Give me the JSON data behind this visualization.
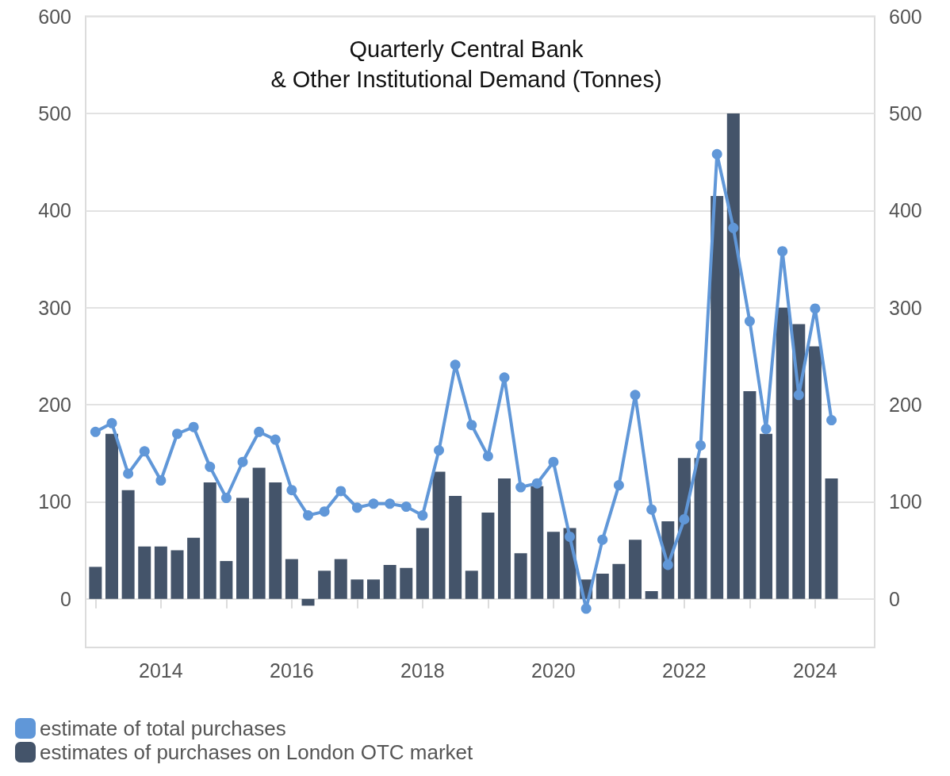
{
  "chart_data": {
    "type": "bar",
    "title": "Quarterly Central Bank\n& Other Institutional Demand (Tonnes)",
    "x": [
      2013,
      2013.25,
      2013.5,
      2013.75,
      2014,
      2014.25,
      2014.5,
      2014.75,
      2015,
      2015.25,
      2015.5,
      2015.75,
      2016,
      2016.25,
      2016.5,
      2016.75,
      2017,
      2017.25,
      2017.5,
      2017.75,
      2018,
      2018.25,
      2018.5,
      2018.75,
      2019,
      2019.25,
      2019.5,
      2019.75,
      2020,
      2020.25,
      2020.5,
      2020.75,
      2021,
      2021.25,
      2021.5,
      2021.75,
      2022,
      2022.25,
      2022.5,
      2022.75,
      2023,
      2023.25,
      2023.5,
      2023.75,
      2024,
      2024.25
    ],
    "series": [
      {
        "name": "estimates of purchases on London OTC market",
        "color": "#44546a",
        "values": [
          33,
          170,
          112,
          54,
          54,
          50,
          63,
          120,
          39,
          104,
          135,
          120,
          41,
          -7,
          29,
          41,
          20,
          20,
          35,
          32,
          73,
          131,
          106,
          29,
          89,
          124,
          47,
          116,
          69,
          73,
          20,
          26,
          36,
          61,
          8,
          80,
          145,
          145,
          415,
          500,
          214,
          170,
          300,
          283,
          260,
          124
        ]
      },
      {
        "name": "estimate of total purchases",
        "type": "line",
        "color": "#6097d8",
        "values": [
          172,
          181,
          129,
          152,
          122,
          170,
          177,
          136,
          104,
          141,
          172,
          164,
          112,
          86,
          90,
          111,
          94,
          98,
          98,
          95,
          86,
          153,
          241,
          179,
          147,
          228,
          115,
          119,
          141,
          64,
          -10,
          61,
          117,
          210,
          92,
          35,
          82,
          158,
          458,
          382,
          286,
          175,
          358,
          210,
          299,
          184
        ]
      }
    ],
    "xlim": [
      2012.85,
      2024.91
    ],
    "xticks": [
      {
        "value": 2013,
        "label": null
      },
      2014,
      {
        "value": 2015,
        "label": null
      },
      2016,
      {
        "value": 2017,
        "label": null
      },
      2018,
      {
        "value": 2019,
        "label": null
      },
      2020,
      {
        "value": 2021,
        "label": null
      },
      2022,
      {
        "value": 2023,
        "label": null
      },
      2024
    ],
    "ylim": [
      -50,
      600
    ],
    "yticks": [
      0,
      100,
      200,
      300,
      400,
      500,
      600
    ],
    "y2lim": [
      -50,
      600
    ],
    "y2ticks": [
      0,
      100,
      200,
      300,
      400,
      500,
      600
    ],
    "grid": "y",
    "legend": "bottom",
    "marker": "circle",
    "line_style": "solid"
  }
}
